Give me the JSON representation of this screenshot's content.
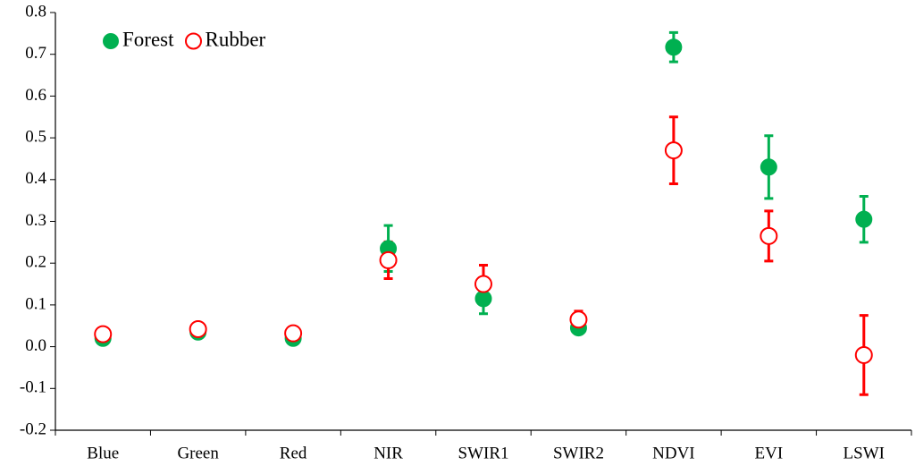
{
  "chart_data": {
    "type": "errorbar",
    "categories": [
      "Blue",
      "Green",
      "Red",
      "NIR",
      "SWIR1",
      "SWIR2",
      "NDVI",
      "EVI",
      "LSWI"
    ],
    "series": [
      {
        "name": "Forest",
        "color": "#00b050",
        "marker": "filled",
        "values": [
          0.02,
          0.035,
          0.02,
          0.235,
          0.115,
          0.045,
          0.717,
          0.43,
          0.305
        ],
        "errors": [
          0.005,
          0.005,
          0.005,
          0.055,
          0.036,
          0.01,
          0.035,
          0.075,
          0.055
        ]
      },
      {
        "name": "Rubber",
        "color": "#ff0000",
        "marker": "open",
        "values": [
          0.03,
          0.042,
          0.032,
          0.207,
          0.15,
          0.065,
          0.47,
          0.265,
          -0.02
        ],
        "errors": [
          0.005,
          0.005,
          0.005,
          0.044,
          0.045,
          0.02,
          0.08,
          0.06,
          0.095
        ]
      }
    ],
    "ylim": [
      -0.2,
      0.8
    ],
    "yticks": [
      -0.2,
      -0.1,
      {
        "value": 0,
        "label": "0.0"
      },
      0.1,
      0.2,
      0.3,
      0.4,
      0.5,
      0.6,
      0.7,
      0.8
    ],
    "legend": "top-left"
  }
}
